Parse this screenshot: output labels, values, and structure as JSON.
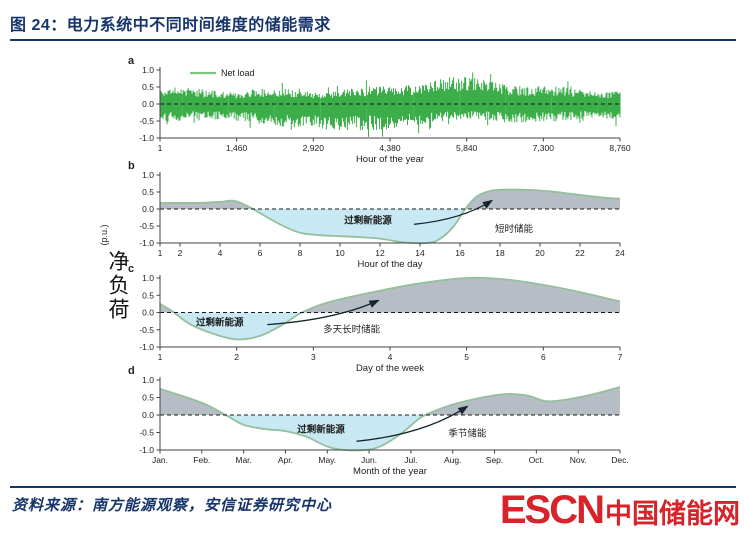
{
  "header": {
    "title": "图 24：电力系统中不同时间维度的储能需求"
  },
  "figure": {
    "y_axis_label": "净负荷",
    "y_axis_unit": "(p.u.)"
  },
  "footer": {
    "source": "资料来源：南方能源观察，安信证券研究中心",
    "logo_latin": "ESCN",
    "logo_cn": "中国储能网"
  },
  "colors": {
    "accent_navy": "#17356b",
    "logo_red": "#d8232a",
    "noise_green": "#3bae4a",
    "legend_green": "#7cc47f",
    "curve_green": "#94c09b",
    "fill_gray": "#b7bdc4",
    "fill_blue": "#c8e9f3",
    "annotation_red": "#e8262d",
    "arrow_dark": "#15262e"
  },
  "chart_data": [
    {
      "id": "a",
      "panel_label": "a",
      "type": "line",
      "series": [
        {
          "name": "Net load",
          "description": "Hourly net load oscillating around 0, mostly between -0.6 and +0.5 p.u.; deeper negative excursions to -1.0 near mid-year (hours ~2,900-4,400) and higher positive peaks to ~+1.0 around hours ~5,000-6,500"
        }
      ],
      "legend": {
        "label": "Net load",
        "position": "top-left"
      },
      "xlabel": "Hour of the year",
      "xlim": [
        1,
        8760
      ],
      "xtick_values": [
        1,
        1460,
        2920,
        4380,
        5840,
        7300,
        8760
      ],
      "xtick_labels": [
        "1",
        "1,460",
        "2,920",
        "4,380",
        "5,840",
        "7,300",
        "8,760"
      ],
      "ylim": [
        -1,
        1
      ],
      "ytick_values": [
        1,
        0.5,
        0,
        -0.5,
        -1
      ],
      "ytick_labels": [
        "1.0",
        "0.5",
        "0.0",
        "-0.5",
        "-1.0"
      ],
      "zero_line": "dashed",
      "noise": {
        "seed": 11,
        "points": 460
      }
    },
    {
      "id": "b",
      "panel_label": "b",
      "type": "area",
      "xlabel": "Hour of the day",
      "xlim": [
        1,
        24
      ],
      "xtick_values": [
        1,
        2,
        4,
        6,
        8,
        10,
        12,
        14,
        16,
        18,
        20,
        22,
        24
      ],
      "xtick_labels": [
        "1",
        "2",
        "4",
        "6",
        "8",
        "10",
        "12",
        "14",
        "16",
        "18",
        "20",
        "22",
        "24"
      ],
      "ylim": [
        -1,
        1
      ],
      "ytick_values": [
        1,
        0.5,
        0,
        -0.5,
        -1
      ],
      "ytick_labels": [
        "1.0",
        "0.5",
        "0.0",
        "-0.5",
        "-1.0"
      ],
      "zero_line": "dashed",
      "curve": [
        [
          1,
          0.18
        ],
        [
          2,
          0.18
        ],
        [
          3,
          0.18
        ],
        [
          4,
          0.21
        ],
        [
          4.7,
          0.24
        ],
        [
          5.4,
          0.08
        ],
        [
          6,
          -0.12
        ],
        [
          7,
          -0.45
        ],
        [
          8,
          -0.7
        ],
        [
          9,
          -0.77
        ],
        [
          10,
          -0.8
        ],
        [
          11,
          -0.83
        ],
        [
          12,
          -0.87
        ],
        [
          13,
          -0.97
        ],
        [
          13.6,
          -1
        ],
        [
          14.4,
          -1
        ],
        [
          15,
          -0.88
        ],
        [
          15.7,
          -0.5
        ],
        [
          16.2,
          -0.05
        ],
        [
          16.8,
          0.35
        ],
        [
          17.5,
          0.53
        ],
        [
          18.3,
          0.57
        ],
        [
          19.5,
          0.56
        ],
        [
          20.5,
          0.52
        ],
        [
          21.5,
          0.45
        ],
        [
          22.5,
          0.38
        ],
        [
          23.3,
          0.33
        ],
        [
          24,
          0.3
        ]
      ],
      "annotations": [
        {
          "text": "过剩新能源",
          "x": 11.4,
          "y": -0.42,
          "color": "red"
        },
        {
          "text": "短时储能",
          "x": 18.7,
          "y": -0.68,
          "color": "black"
        }
      ],
      "arrow": {
        "from": [
          13.7,
          -0.45
        ],
        "to": [
          17.6,
          0.25
        ]
      }
    },
    {
      "id": "c",
      "panel_label": "c",
      "type": "area",
      "xlabel": "Day of the week",
      "xlim": [
        1,
        7
      ],
      "xtick_values": [
        1,
        2,
        3,
        4,
        5,
        6,
        7
      ],
      "xtick_labels": [
        "1",
        "2",
        "3",
        "4",
        "5",
        "6",
        "7"
      ],
      "ylim": [
        -1,
        1
      ],
      "ytick_values": [
        1,
        0.5,
        0,
        -0.5,
        -1
      ],
      "ytick_labels": [
        "1.0",
        "0.5",
        "0.0",
        "-0.5",
        "-1.0"
      ],
      "zero_line": "dashed",
      "curve": [
        [
          1,
          0.25
        ],
        [
          1.15,
          0.05
        ],
        [
          1.4,
          -0.35
        ],
        [
          1.7,
          -0.62
        ],
        [
          2,
          -0.78
        ],
        [
          2.3,
          -0.68
        ],
        [
          2.6,
          -0.35
        ],
        [
          2.85,
          0
        ],
        [
          3.2,
          0.3
        ],
        [
          3.8,
          0.6
        ],
        [
          4.4,
          0.85
        ],
        [
          5,
          1
        ],
        [
          5.5,
          0.96
        ],
        [
          6,
          0.8
        ],
        [
          6.5,
          0.58
        ],
        [
          7,
          0.32
        ]
      ],
      "annotations": [
        {
          "text": "过剩新能源",
          "x": 1.78,
          "y": -0.38,
          "color": "red"
        },
        {
          "text": "多天长时储能",
          "x": 3.5,
          "y": -0.58,
          "color": "black"
        }
      ],
      "arrow": {
        "from": [
          2.4,
          -0.35
        ],
        "to": [
          3.85,
          0.35
        ]
      }
    },
    {
      "id": "d",
      "panel_label": "d",
      "type": "area",
      "xlabel": "Month of the year",
      "xlim": [
        1,
        12
      ],
      "xtick_values": [
        1,
        2,
        3,
        4,
        5,
        6,
        7,
        8,
        9,
        10,
        11,
        12
      ],
      "xtick_labels": [
        "Jan.",
        "Feb.",
        "Mar.",
        "Apr.",
        "May.",
        "Jun.",
        "Jul.",
        "Aug.",
        "Sep.",
        "Oct.",
        "Nov.",
        "Dec."
      ],
      "ylim": [
        -1,
        1
      ],
      "ytick_values": [
        1,
        0.5,
        0,
        -0.5,
        -1
      ],
      "ytick_labels": [
        "1.0",
        "0.5",
        "0.0",
        "-0.5",
        "-1.0"
      ],
      "zero_line": "dashed",
      "curve": [
        [
          1,
          0.75
        ],
        [
          1.6,
          0.52
        ],
        [
          2.1,
          0.3
        ],
        [
          2.6,
          -0.02
        ],
        [
          3,
          -0.28
        ],
        [
          3.5,
          -0.4
        ],
        [
          4,
          -0.46
        ],
        [
          4.5,
          -0.62
        ],
        [
          5,
          -0.9
        ],
        [
          5.4,
          -1
        ],
        [
          5.9,
          -1
        ],
        [
          6.3,
          -0.88
        ],
        [
          6.8,
          -0.5
        ],
        [
          7.2,
          -0.1
        ],
        [
          7.5,
          0.08
        ],
        [
          8,
          0.3
        ],
        [
          8.7,
          0.5
        ],
        [
          9.3,
          0.6
        ],
        [
          9.8,
          0.55
        ],
        [
          10.2,
          0.4
        ],
        [
          10.6,
          0.42
        ],
        [
          11.2,
          0.55
        ],
        [
          11.7,
          0.7
        ],
        [
          12,
          0.8
        ]
      ],
      "annotations": [
        {
          "text": "过剩新能源",
          "x": 4.85,
          "y": -0.5,
          "color": "red"
        },
        {
          "text": "季节储能",
          "x": 8.35,
          "y": -0.62,
          "color": "black"
        }
      ],
      "arrow": {
        "from": [
          5.7,
          -0.75
        ],
        "to": [
          8.35,
          0.25
        ]
      }
    }
  ]
}
